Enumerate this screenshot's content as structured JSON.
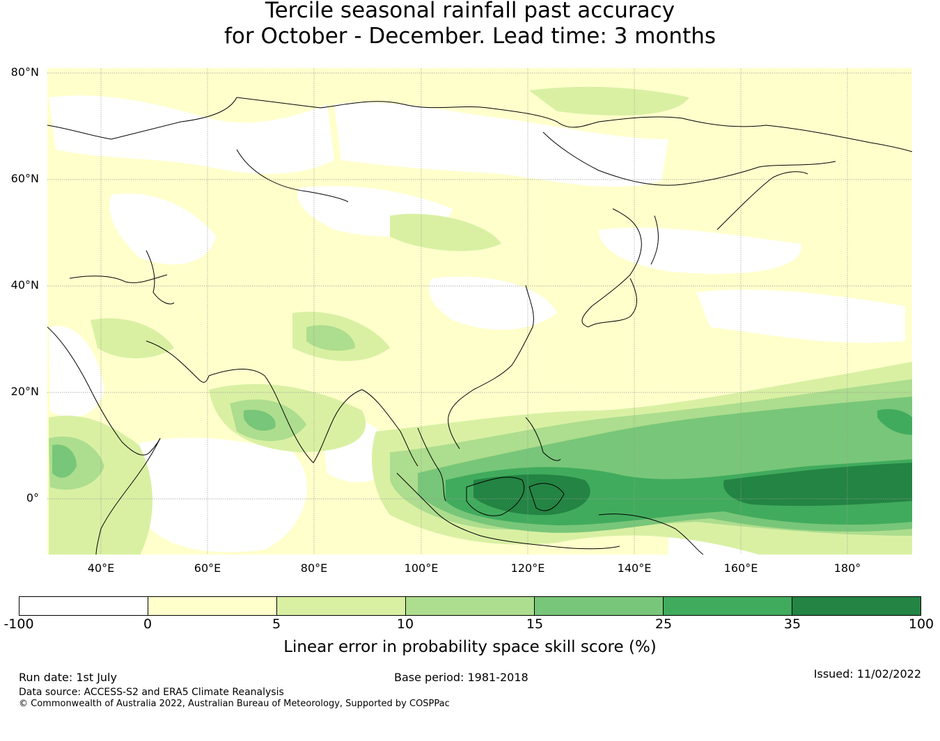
{
  "title": {
    "line1": "Tercile seasonal rainfall past accuracy",
    "line2": "for October - December. Lead time: 3 months"
  },
  "map": {
    "lat_labels": [
      "80°N",
      "60°N",
      "40°N",
      "20°N",
      "0°"
    ],
    "lon_labels": [
      "40°E",
      "60°E",
      "80°E",
      "100°E",
      "120°E",
      "140°E",
      "160°E",
      "180°"
    ],
    "land_color": "#ffffff",
    "coastline_color": "#000000",
    "gridline_color": "#999999"
  },
  "colorbar": {
    "ticks": [
      "-100",
      "0",
      "5",
      "10",
      "15",
      "25",
      "35",
      "100"
    ],
    "colors": [
      "#ffffff",
      "#ffffcc",
      "#d9f0a3",
      "#addd8e",
      "#78c679",
      "#41ab5d",
      "#238443"
    ],
    "label": "Linear error in probability space skill score (%)"
  },
  "footer": {
    "run_date": "Run date: 1st July",
    "base_period": "Base period: 1981-2018",
    "issued": "Issued: 11/02/2022",
    "data_source": "Data source: ACCESS-S2 and ERA5 Climate Reanalysis",
    "copyright": "© Commonwealth of Australia 2022, Australian Bureau of Meteorology, Supported by COSPPac"
  }
}
